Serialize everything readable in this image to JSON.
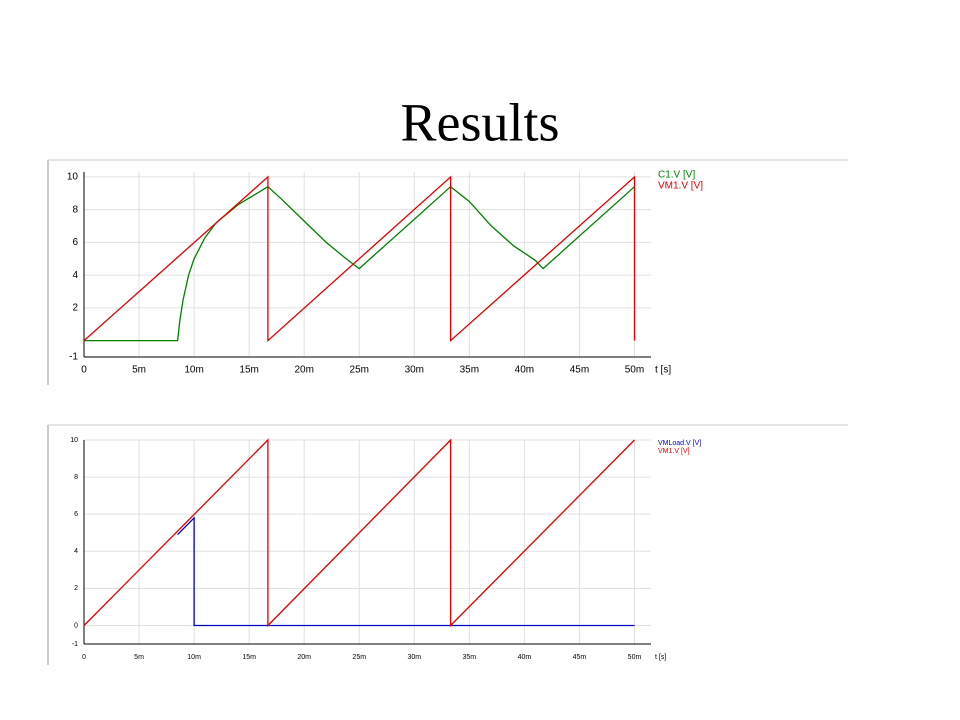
{
  "title": "Results",
  "chart_data": [
    {
      "type": "line",
      "xlabel": "t [s]",
      "legend": "right",
      "grid": true,
      "xlim": [
        0,
        0.0515
      ],
      "ylim": [
        -1,
        10.3
      ],
      "xticks": [
        0,
        {
          "value": 0.005,
          "label": "5m"
        },
        {
          "value": 0.01,
          "label": "10m"
        },
        {
          "value": 0.015,
          "label": "15m"
        },
        {
          "value": 0.02,
          "label": "20m"
        },
        {
          "value": 0.025,
          "label": "25m"
        },
        {
          "value": 0.03,
          "label": "30m"
        },
        {
          "value": 0.035,
          "label": "35m"
        },
        {
          "value": 0.04,
          "label": "40m"
        },
        {
          "value": 0.045,
          "label": "45m"
        },
        {
          "value": 0.05,
          "label": "50m"
        }
      ],
      "yticks": [
        -1,
        2,
        4,
        6,
        8,
        10
      ],
      "series": [
        {
          "name": "C1.V [V]",
          "color": "#008000",
          "x": [
            0,
            0.0085,
            0.0087,
            0.009,
            0.0095,
            0.01,
            0.011,
            0.012,
            0.014,
            0.0167,
            0.018,
            0.02,
            0.022,
            0.024,
            0.025,
            0.0333,
            0.035,
            0.037,
            0.039,
            0.041,
            0.0417,
            0.05
          ],
          "values": [
            0,
            0,
            1.2,
            2.5,
            4,
            5,
            6.3,
            7.2,
            8.3,
            9.4,
            8.6,
            7.3,
            6,
            4.9,
            4.4,
            9.4,
            8.5,
            7,
            5.8,
            4.9,
            4.4,
            9.4
          ]
        },
        {
          "name": "VM1.V [V]",
          "color": "#e00000",
          "x": [
            0,
            0.0167,
            0.0167,
            0.0333,
            0.0333,
            0.05,
            0.05
          ],
          "values": [
            0,
            10,
            0,
            10,
            0,
            10,
            0
          ]
        }
      ]
    },
    {
      "type": "line",
      "xlabel": "t [s]",
      "legend": "right",
      "grid": true,
      "xlim": [
        0,
        0.0515
      ],
      "ylim": [
        -1,
        10
      ],
      "xticks": [
        0,
        {
          "value": 0.005,
          "label": "5m"
        },
        {
          "value": 0.01,
          "label": "10m"
        },
        {
          "value": 0.015,
          "label": "15m"
        },
        {
          "value": 0.02,
          "label": "20m"
        },
        {
          "value": 0.025,
          "label": "25m"
        },
        {
          "value": 0.03,
          "label": "30m"
        },
        {
          "value": 0.035,
          "label": "35m"
        },
        {
          "value": 0.04,
          "label": "40m"
        },
        {
          "value": 0.045,
          "label": "45m"
        },
        {
          "value": 0.05,
          "label": "50m"
        }
      ],
      "yticks": [
        -1,
        0,
        2,
        4,
        6,
        8,
        10
      ],
      "series": [
        {
          "name": "VMLoad.V [V]",
          "color": "#0000c0",
          "x": [
            0.0085,
            0.01,
            0.01,
            0.05
          ],
          "values": [
            4.9,
            5.8,
            0,
            0
          ]
        },
        {
          "name": "VM1.V [V]",
          "color": "#e00000",
          "x": [
            0,
            0.0167,
            0.0167,
            0.0333,
            0.0333,
            0.05
          ],
          "values": [
            0,
            10,
            0,
            10,
            0,
            10
          ]
        }
      ]
    }
  ]
}
